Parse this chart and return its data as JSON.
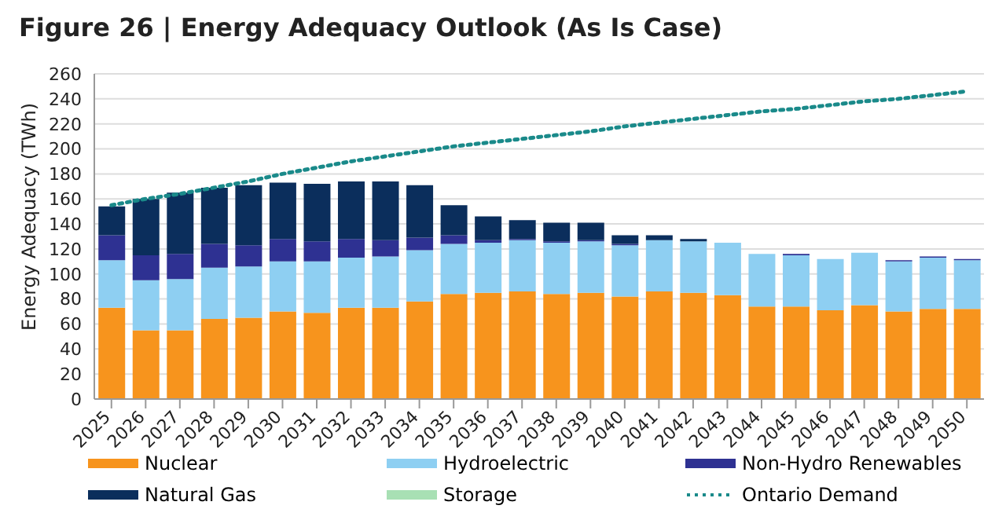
{
  "chart_data": {
    "type": "bar",
    "title": "Figure 26 | Energy Adequacy Outlook (As Is Case)",
    "ylabel": "Energy Adequacy (TWh)",
    "stacked": true,
    "categories": [
      "2025",
      "2026",
      "2027",
      "2028",
      "2029",
      "2030",
      "2031",
      "2032",
      "2033",
      "2034",
      "2035",
      "2036",
      "2037",
      "2038",
      "2039",
      "2040",
      "2041",
      "2042",
      "2043",
      "2044",
      "2045",
      "2046",
      "2047",
      "2048",
      "2049",
      "2050"
    ],
    "series": [
      {
        "name": "Nuclear",
        "color": "#f7941d",
        "values": [
          73,
          55,
          55,
          64,
          65,
          70,
          69,
          73,
          73,
          78,
          84,
          85,
          86,
          84,
          85,
          82,
          86,
          85,
          83,
          74,
          74,
          71,
          75,
          70,
          72,
          72
        ]
      },
      {
        "name": "Hydroelectric",
        "color": "#8ecff2",
        "values": [
          38,
          40,
          41,
          41,
          41,
          40,
          41,
          40,
          41,
          41,
          40,
          40,
          41,
          41,
          41,
          41,
          41,
          41,
          42,
          42,
          41,
          41,
          42,
          40,
          41,
          39
        ]
      },
      {
        "name": "Non-Hydro Renewables",
        "color": "#2e3192",
        "values": [
          20,
          20,
          20,
          19,
          17,
          18,
          16,
          15,
          13,
          10,
          7,
          2,
          1,
          1,
          1,
          1,
          0,
          0,
          0,
          0,
          1,
          0,
          0,
          1,
          1,
          1
        ]
      },
      {
        "name": "Natural Gas",
        "color": "#0b2e5c",
        "values": [
          23,
          45,
          49,
          45,
          48,
          45,
          46,
          46,
          47,
          42,
          24,
          19,
          15,
          15,
          14,
          7,
          4,
          2,
          0,
          0,
          0,
          0,
          0,
          0,
          0,
          0
        ]
      },
      {
        "name": "Storage",
        "color": "#a8e0b4",
        "values": [
          0,
          0,
          0,
          0,
          0,
          0,
          0,
          0,
          0,
          0,
          0,
          0,
          0,
          0,
          0,
          0,
          0,
          0,
          0,
          0,
          0,
          0,
          0,
          0,
          0,
          0
        ]
      },
      {
        "name": "Ontario Demand",
        "type": "line",
        "color": "#1a8a8a",
        "line_style": "dotted",
        "marker": "none",
        "values": [
          155,
          160,
          164,
          169,
          174,
          180,
          185,
          190,
          194,
          198,
          202,
          205,
          208,
          211,
          214,
          218,
          221,
          224,
          227,
          230,
          232,
          235,
          238,
          240,
          243,
          246
        ]
      }
    ],
    "ylim": [
      0,
      260
    ],
    "yticks": [
      0,
      20,
      40,
      60,
      80,
      100,
      120,
      140,
      160,
      180,
      200,
      220,
      240,
      260
    ],
    "grid": "y",
    "legend": "bottom"
  }
}
